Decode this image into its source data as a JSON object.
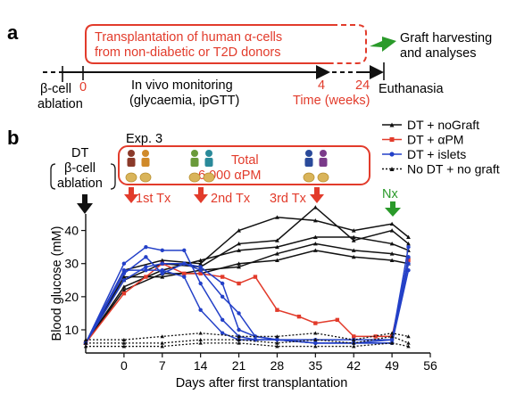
{
  "panel_a": {
    "letter": "a",
    "box_text_1": "Transplantation of human α-cells",
    "box_text_2": "from non-diabetic or T2D donors",
    "arrow_text_1": "Graft harvesting",
    "arrow_text_2": "and analyses",
    "left_label_1": "β-cell",
    "left_label_2": "ablation",
    "tick_0": "0",
    "monitor_1": "In vivo monitoring",
    "monitor_2": "(glycaemia, ipGTT)",
    "tick_4": "4",
    "tick_24": "24",
    "time_label": "Time (weeks)",
    "end_label": "Euthanasia"
  },
  "panel_b": {
    "letter": "b",
    "exp": "Exp. 3",
    "dt_1": "DT",
    "dt_2": "β-cell",
    "dt_3": "ablation",
    "total_1": "Total",
    "total_2": "6,000  αPM",
    "tx1": "1st Tx",
    "tx2": "2nd Tx",
    "tx3": "3rd Tx",
    "nx": "Nx",
    "colors": {
      "black": "#111111",
      "red": "#e23b2b",
      "blue": "#2340c8",
      "green": "#2a9a2a"
    }
  },
  "chart_data": {
    "type": "line",
    "xlabel": "Days after first transplantation",
    "ylabel": "Blood glucose (mM)",
    "xlim": [
      -7,
      56
    ],
    "ylim": [
      3,
      45
    ],
    "xticks": [
      0,
      7,
      14,
      21,
      28,
      35,
      42,
      49,
      56
    ],
    "yticks": [
      10,
      20,
      30,
      40
    ],
    "legend": {
      "placement": "top-right",
      "entries": [
        "DT + noGraft",
        "DT + αPM",
        "DT + islets",
        "No DT + no graft"
      ]
    },
    "series": [
      {
        "name": "DT + noGraft",
        "color": "#111111",
        "style": "solid",
        "x": [
          -7,
          0,
          7,
          14,
          21,
          28,
          35,
          42,
          49,
          52
        ],
        "y": [
          6,
          28,
          31,
          30,
          40,
          44,
          43,
          40,
          42,
          38
        ]
      },
      {
        "name": "DT + noGraft",
        "color": "#111111",
        "style": "solid",
        "x": [
          -7,
          0,
          7,
          14,
          21,
          28,
          35,
          42,
          49,
          52
        ],
        "y": [
          6,
          25,
          30,
          29,
          36,
          37,
          47,
          37,
          40,
          36
        ]
      },
      {
        "name": "DT + noGraft",
        "color": "#111111",
        "style": "solid",
        "x": [
          -7,
          0,
          7,
          14,
          21,
          28,
          35,
          42,
          49,
          52
        ],
        "y": [
          6,
          23,
          28,
          31,
          34,
          35,
          38,
          38,
          36,
          34
        ]
      },
      {
        "name": "DT + noGraft",
        "color": "#111111",
        "style": "solid",
        "x": [
          -7,
          0,
          7,
          14,
          21,
          28,
          35,
          42,
          49,
          52
        ],
        "y": [
          6,
          26,
          26,
          28,
          29,
          33,
          36,
          34,
          33,
          32
        ]
      },
      {
        "name": "DT + noGraft",
        "color": "#111111",
        "style": "solid",
        "x": [
          -7,
          0,
          7,
          14,
          21,
          28,
          35,
          42,
          49,
          52
        ],
        "y": [
          6,
          22,
          27,
          27,
          30,
          31,
          34,
          32,
          31,
          30
        ]
      },
      {
        "name": "DT + αPM",
        "color": "#e23b2b",
        "style": "solid",
        "x": [
          -7,
          0,
          4,
          7,
          11,
          14,
          18,
          21,
          24,
          28,
          32,
          35,
          39,
          42,
          46,
          49,
          52
        ],
        "y": [
          6,
          21,
          26,
          30,
          27,
          27,
          26,
          24,
          26,
          16,
          14,
          12,
          13,
          8,
          8,
          8,
          31
        ]
      },
      {
        "name": "DT + islets",
        "color": "#2340c8",
        "style": "solid",
        "x": [
          -7,
          0,
          4,
          7,
          11,
          14,
          18,
          21,
          24,
          28,
          35,
          42,
          49,
          52
        ],
        "y": [
          6,
          30,
          35,
          34,
          34,
          24,
          13,
          8,
          7,
          7,
          7,
          7,
          7,
          35
        ]
      },
      {
        "name": "DT + islets",
        "color": "#2340c8",
        "style": "solid",
        "x": [
          -7,
          0,
          4,
          7,
          11,
          14,
          18,
          21,
          24,
          28,
          35,
          42,
          49,
          52
        ],
        "y": [
          6,
          27,
          32,
          27,
          30,
          29,
          24,
          10,
          8,
          7,
          6,
          6,
          7,
          32
        ]
      },
      {
        "name": "DT + islets",
        "color": "#2340c8",
        "style": "solid",
        "x": [
          -7,
          0,
          4,
          7,
          11,
          14,
          18,
          21,
          24,
          28,
          35,
          42,
          49,
          52
        ],
        "y": [
          6,
          25,
          29,
          30,
          30,
          28,
          20,
          15,
          8,
          7,
          6,
          6,
          6,
          30
        ]
      },
      {
        "name": "DT + islets",
        "color": "#2340c8",
        "style": "solid",
        "x": [
          -7,
          0,
          4,
          7,
          11,
          14,
          18,
          21,
          24,
          28,
          35,
          42,
          49,
          52
        ],
        "y": [
          6,
          28,
          28,
          28,
          26,
          16,
          9,
          7,
          7,
          7,
          6,
          6,
          6,
          28
        ]
      },
      {
        "name": "No DT + no graft",
        "color": "#111111",
        "style": "dotted",
        "x": [
          -7,
          0,
          7,
          14,
          21,
          28,
          35,
          42,
          49,
          52
        ],
        "y": [
          7,
          7,
          8,
          9,
          8,
          8,
          9,
          7,
          9,
          8
        ]
      },
      {
        "name": "No DT + no graft",
        "color": "#111111",
        "style": "dotted",
        "x": [
          -7,
          0,
          7,
          14,
          21,
          28,
          35,
          42,
          49,
          52
        ],
        "y": [
          6,
          6,
          6,
          7,
          7,
          6,
          7,
          6,
          8,
          6
        ]
      },
      {
        "name": "No DT + no graft",
        "color": "#111111",
        "style": "dotted",
        "x": [
          -7,
          0,
          7,
          14,
          21,
          28,
          35,
          42,
          49,
          52
        ],
        "y": [
          5,
          5,
          5,
          6,
          6,
          5,
          5,
          5,
          6,
          5
        ]
      }
    ]
  }
}
